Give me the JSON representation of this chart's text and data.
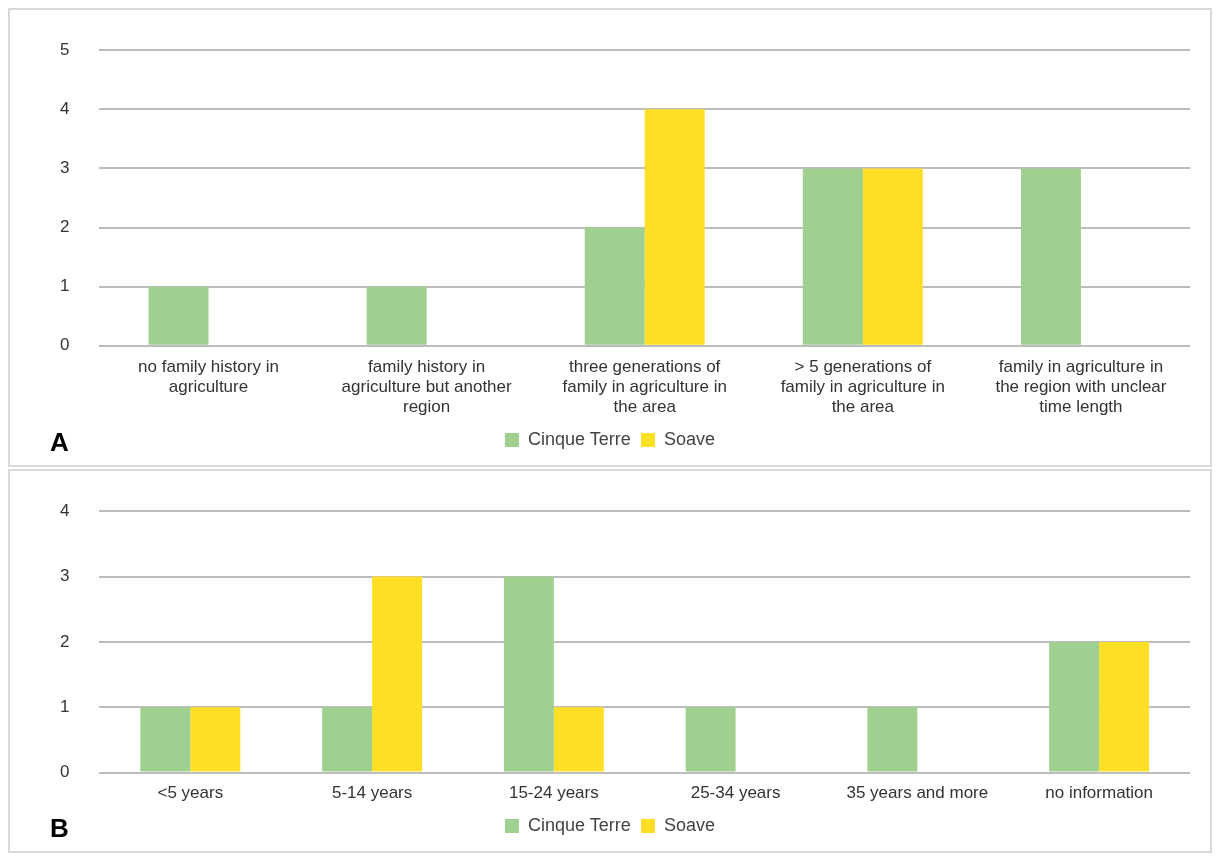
{
  "chart_data": [
    {
      "type": "bar",
      "categories": [
        "no family history in agriculture",
        "family history in agriculture but another region",
        "three generations of family in agriculture in the area",
        "> 5 generations of family in agriculture in the area",
        "family in agriculture in the region with unclear time length"
      ],
      "series": [
        {
          "name": "Cinque Terre",
          "color": "#a0d08f",
          "values": [
            1,
            1,
            2,
            3,
            3
          ]
        },
        {
          "name": "Soave",
          "color": "#ffdf25",
          "values": [
            null,
            null,
            4,
            3,
            null
          ]
        }
      ],
      "ylim": [
        0,
        5
      ],
      "yticks": [
        0,
        1,
        2,
        3,
        4,
        5
      ],
      "grid": "y",
      "legend": "bottom",
      "annotations": [
        "A"
      ]
    },
    {
      "type": "bar",
      "categories": [
        "<5 years",
        "5-14 years",
        "15-24 years",
        "25-34 years",
        "35 years and more",
        "no information"
      ],
      "series": [
        {
          "name": "Cinque Terre",
          "color": "#a0d08f",
          "values": [
            1,
            1,
            3,
            1,
            1,
            2
          ]
        },
        {
          "name": "Soave",
          "color": "#ffdf25",
          "values": [
            1,
            3,
            1,
            null,
            null,
            2
          ]
        }
      ],
      "ylim": [
        0,
        4
      ],
      "yticks": [
        0,
        1,
        2,
        3,
        4
      ],
      "grid": "y",
      "legend": "bottom",
      "annotations": [
        "B"
      ]
    }
  ]
}
